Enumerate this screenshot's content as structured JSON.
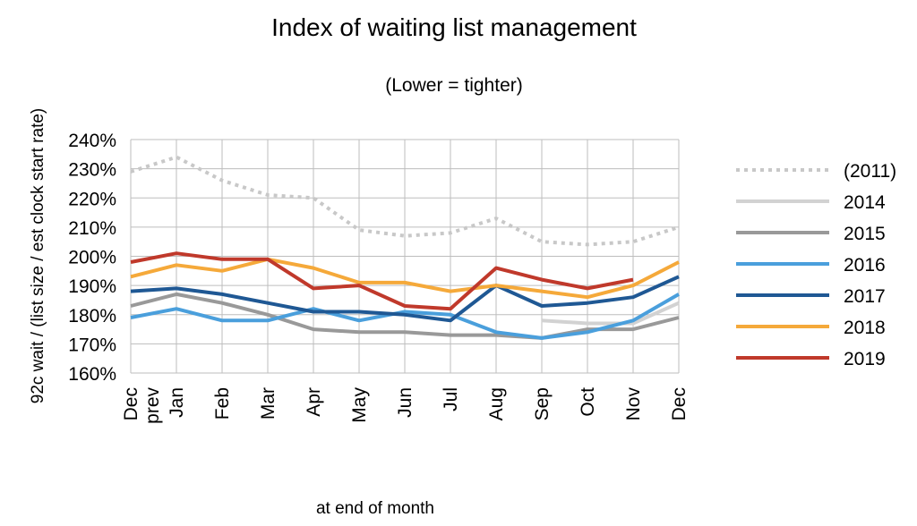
{
  "chart_data": {
    "type": "line",
    "title": "Index of waiting list management",
    "subtitle": "(Lower = tighter)",
    "ylabel": "92c wait / (list size / est clock start rate)",
    "xlabel": "at end of month",
    "categories": [
      "Dec prev",
      "Jan",
      "Feb",
      "Mar",
      "Apr",
      "May",
      "Jun",
      "Jul",
      "Aug",
      "Sep",
      "Oct",
      "Nov",
      "Dec"
    ],
    "ylim": [
      160,
      240
    ],
    "yticks": [
      "160%",
      "170%",
      "180%",
      "190%",
      "200%",
      "210%",
      "220%",
      "230%",
      "240%"
    ],
    "ytick_values": [
      160,
      170,
      180,
      190,
      200,
      210,
      220,
      230,
      240
    ],
    "grid": true,
    "legend_position": "right",
    "series": [
      {
        "name": "(2011)",
        "color": "#c8c8c8",
        "dashed": true,
        "values": [
          229,
          234,
          226,
          221,
          220,
          209,
          207,
          208,
          213,
          205,
          204,
          205,
          210
        ]
      },
      {
        "name": "2014",
        "color": "#d2d2d2",
        "dashed": false,
        "values": [
          null,
          null,
          null,
          null,
          null,
          null,
          null,
          null,
          null,
          178,
          177,
          177,
          184
        ]
      },
      {
        "name": "2015",
        "color": "#999999",
        "dashed": false,
        "values": [
          183,
          187,
          184,
          180,
          175,
          174,
          174,
          173,
          173,
          172,
          175,
          175,
          179
        ]
      },
      {
        "name": "2016",
        "color": "#4a9fdc",
        "dashed": false,
        "values": [
          179,
          182,
          178,
          178,
          182,
          178,
          181,
          180,
          174,
          172,
          174,
          178,
          187
        ]
      },
      {
        "name": "2017",
        "color": "#1f5894",
        "dashed": false,
        "values": [
          188,
          189,
          187,
          184,
          181,
          181,
          180,
          178,
          190,
          183,
          184,
          186,
          193
        ]
      },
      {
        "name": "2018",
        "color": "#f5a93a",
        "dashed": false,
        "values": [
          193,
          197,
          195,
          199,
          196,
          191,
          191,
          188,
          190,
          188,
          186,
          190,
          198
        ]
      },
      {
        "name": "2019",
        "color": "#c0392b",
        "dashed": false,
        "values": [
          198,
          201,
          199,
          199,
          189,
          190,
          183,
          182,
          196,
          192,
          189,
          192,
          null
        ]
      }
    ]
  }
}
